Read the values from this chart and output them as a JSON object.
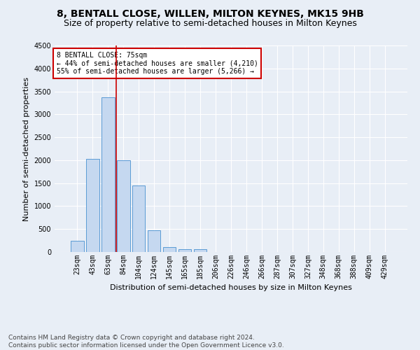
{
  "title": "8, BENTALL CLOSE, WILLEN, MILTON KEYNES, MK15 9HB",
  "subtitle": "Size of property relative to semi-detached houses in Milton Keynes",
  "xlabel": "Distribution of semi-detached houses by size in Milton Keynes",
  "ylabel": "Number of semi-detached properties",
  "categories": [
    "23sqm",
    "43sqm",
    "63sqm",
    "84sqm",
    "104sqm",
    "124sqm",
    "145sqm",
    "165sqm",
    "185sqm",
    "206sqm",
    "226sqm",
    "246sqm",
    "266sqm",
    "287sqm",
    "307sqm",
    "327sqm",
    "348sqm",
    "368sqm",
    "388sqm",
    "409sqm",
    "429sqm"
  ],
  "values": [
    250,
    2030,
    3370,
    2000,
    1450,
    470,
    100,
    60,
    55,
    0,
    0,
    0,
    0,
    0,
    0,
    0,
    0,
    0,
    0,
    0,
    0
  ],
  "bar_color": "#c5d8f0",
  "bar_edge_color": "#5b9bd5",
  "annotation_line1": "8 BENTALL CLOSE: 75sqm",
  "annotation_line2": "← 44% of semi-detached houses are smaller (4,210)",
  "annotation_line3": "55% of semi-detached houses are larger (5,266) →",
  "vline_x_index": 2.52,
  "vline_color": "#cc0000",
  "ylim": [
    0,
    4500
  ],
  "yticks": [
    0,
    500,
    1000,
    1500,
    2000,
    2500,
    3000,
    3500,
    4000,
    4500
  ],
  "annotation_box_color": "#ffffff",
  "annotation_box_edge": "#cc0000",
  "footer": "Contains HM Land Registry data © Crown copyright and database right 2024.\nContains public sector information licensed under the Open Government Licence v3.0.",
  "bg_color": "#e8eef6",
  "plot_bg_color": "#e8eef6",
  "grid_color": "#ffffff",
  "title_fontsize": 10,
  "subtitle_fontsize": 9,
  "axis_label_fontsize": 8,
  "tick_fontsize": 7,
  "footer_fontsize": 6.5
}
